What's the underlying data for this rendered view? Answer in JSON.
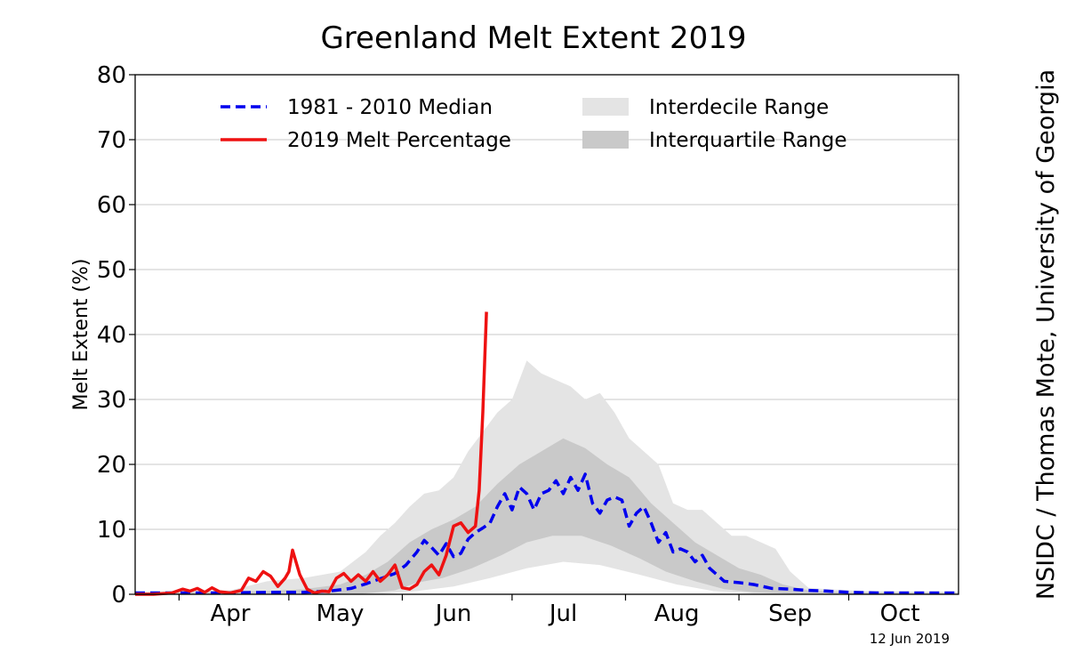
{
  "chart_data": {
    "type": "line",
    "title": "Greenland Melt Extent 2019",
    "ylabel": "Melt Extent (%)",
    "xlabel": "",
    "ylim": [
      0,
      80
    ],
    "y_ticks": [
      0,
      10,
      20,
      30,
      40,
      50,
      60,
      70,
      80
    ],
    "grid": "horizontal",
    "legend_position": "top",
    "x_range": [
      "2019-03-20",
      "2019-10-31"
    ],
    "month_ticks": [
      {
        "label": "Apr",
        "date": "2019-04-15"
      },
      {
        "label": "May",
        "date": "2019-05-15"
      },
      {
        "label": "Jun",
        "date": "2019-06-15"
      },
      {
        "label": "Jul",
        "date": "2019-07-15"
      },
      {
        "label": "Aug",
        "date": "2019-08-15"
      },
      {
        "label": "Sep",
        "date": "2019-09-15"
      },
      {
        "label": "Oct",
        "date": "2019-10-15"
      }
    ],
    "legend": [
      {
        "label": "1981 - 2010 Median",
        "key": "median",
        "style": "dashed",
        "color": "#0000ee"
      },
      {
        "label": "2019 Melt Percentage",
        "key": "melt2019",
        "style": "solid",
        "color": "#ee1111"
      },
      {
        "label": "Interdecile Range",
        "key": "interdecile",
        "style": "fill",
        "color": "#e4e4e4"
      },
      {
        "label": "Interquartile Range",
        "key": "interquartile",
        "style": "fill",
        "color": "#c9c9c9"
      }
    ],
    "series": [
      {
        "name": "1981 - 2010 Median",
        "key": "median",
        "points": [
          [
            "2019-03-20",
            0.2
          ],
          [
            "2019-04-10",
            0.2
          ],
          [
            "2019-04-25",
            0.3
          ],
          [
            "2019-05-05",
            0.3
          ],
          [
            "2019-05-12",
            0.5
          ],
          [
            "2019-05-18",
            0.9
          ],
          [
            "2019-05-22",
            1.6
          ],
          [
            "2019-05-26",
            2.4
          ],
          [
            "2019-05-30",
            3.2
          ],
          [
            "2019-06-02",
            4.5
          ],
          [
            "2019-06-05",
            6.5
          ],
          [
            "2019-06-07",
            8.3
          ],
          [
            "2019-06-09",
            7.2
          ],
          [
            "2019-06-11",
            6.0
          ],
          [
            "2019-06-13",
            7.8
          ],
          [
            "2019-06-15",
            5.8
          ],
          [
            "2019-06-17",
            6.3
          ],
          [
            "2019-06-19",
            8.5
          ],
          [
            "2019-06-21",
            9.5
          ],
          [
            "2019-06-23",
            10.2
          ],
          [
            "2019-06-25",
            11.0
          ],
          [
            "2019-06-27",
            13.5
          ],
          [
            "2019-06-29",
            15.5
          ],
          [
            "2019-07-01",
            13.0
          ],
          [
            "2019-07-03",
            16.5
          ],
          [
            "2019-07-05",
            15.5
          ],
          [
            "2019-07-07",
            13.0
          ],
          [
            "2019-07-09",
            15.5
          ],
          [
            "2019-07-11",
            16.0
          ],
          [
            "2019-07-13",
            17.5
          ],
          [
            "2019-07-15",
            15.5
          ],
          [
            "2019-07-17",
            18.0
          ],
          [
            "2019-07-19",
            16.0
          ],
          [
            "2019-07-21",
            18.5
          ],
          [
            "2019-07-23",
            14.0
          ],
          [
            "2019-07-25",
            12.5
          ],
          [
            "2019-07-27",
            14.5
          ],
          [
            "2019-07-29",
            15.0
          ],
          [
            "2019-07-31",
            14.5
          ],
          [
            "2019-08-02",
            10.5
          ],
          [
            "2019-08-04",
            12.5
          ],
          [
            "2019-08-06",
            13.5
          ],
          [
            "2019-08-08",
            11.0
          ],
          [
            "2019-08-10",
            8.0
          ],
          [
            "2019-08-12",
            9.5
          ],
          [
            "2019-08-14",
            6.5
          ],
          [
            "2019-08-16",
            7.0
          ],
          [
            "2019-08-18",
            6.5
          ],
          [
            "2019-08-20",
            5.0
          ],
          [
            "2019-08-22",
            6.0
          ],
          [
            "2019-08-24",
            4.0
          ],
          [
            "2019-08-26",
            3.0
          ],
          [
            "2019-08-28",
            2.0
          ],
          [
            "2019-09-01",
            1.8
          ],
          [
            "2019-09-05",
            1.5
          ],
          [
            "2019-09-10",
            0.9
          ],
          [
            "2019-09-15",
            0.8
          ],
          [
            "2019-09-20",
            0.6
          ],
          [
            "2019-09-25",
            0.5
          ],
          [
            "2019-10-01",
            0.3
          ],
          [
            "2019-10-10",
            0.2
          ],
          [
            "2019-10-31",
            0.2
          ]
        ]
      },
      {
        "name": "2019 Melt Percentage",
        "key": "melt2019",
        "points": [
          [
            "2019-03-20",
            0.0
          ],
          [
            "2019-03-25",
            0.0
          ],
          [
            "2019-03-30",
            0.2
          ],
          [
            "2019-04-02",
            0.8
          ],
          [
            "2019-04-04",
            0.5
          ],
          [
            "2019-04-06",
            0.9
          ],
          [
            "2019-04-08",
            0.3
          ],
          [
            "2019-04-10",
            1.0
          ],
          [
            "2019-04-12",
            0.4
          ],
          [
            "2019-04-15",
            0.2
          ],
          [
            "2019-04-18",
            0.6
          ],
          [
            "2019-04-20",
            2.5
          ],
          [
            "2019-04-22",
            2.0
          ],
          [
            "2019-04-24",
            3.5
          ],
          [
            "2019-04-26",
            2.8
          ],
          [
            "2019-04-28",
            1.2
          ],
          [
            "2019-04-30",
            2.5
          ],
          [
            "2019-05-01",
            3.5
          ],
          [
            "2019-05-02",
            6.8
          ],
          [
            "2019-05-04",
            3.0
          ],
          [
            "2019-05-06",
            0.8
          ],
          [
            "2019-05-08",
            0.2
          ],
          [
            "2019-05-10",
            0.5
          ],
          [
            "2019-05-12",
            0.4
          ],
          [
            "2019-05-14",
            2.5
          ],
          [
            "2019-05-16",
            3.2
          ],
          [
            "2019-05-18",
            2.0
          ],
          [
            "2019-05-20",
            3.0
          ],
          [
            "2019-05-22",
            2.0
          ],
          [
            "2019-05-24",
            3.5
          ],
          [
            "2019-05-26",
            2.0
          ],
          [
            "2019-05-28",
            3.0
          ],
          [
            "2019-05-30",
            4.5
          ],
          [
            "2019-06-01",
            1.0
          ],
          [
            "2019-06-03",
            0.8
          ],
          [
            "2019-06-05",
            1.5
          ],
          [
            "2019-06-07",
            3.5
          ],
          [
            "2019-06-09",
            4.5
          ],
          [
            "2019-06-11",
            3.0
          ],
          [
            "2019-06-13",
            6.0
          ],
          [
            "2019-06-15",
            10.5
          ],
          [
            "2019-06-17",
            11.0
          ],
          [
            "2019-06-19",
            9.5
          ],
          [
            "2019-06-21",
            10.5
          ],
          [
            "2019-06-22",
            16.0
          ],
          [
            "2019-06-23",
            28.0
          ],
          [
            "2019-06-24",
            43.5
          ]
        ]
      }
    ],
    "bands": [
      {
        "name": "Interdecile Range",
        "key": "interdecile",
        "upper": [
          [
            "2019-03-20",
            0.4
          ],
          [
            "2019-04-15",
            0.6
          ],
          [
            "2019-04-25",
            2.0
          ],
          [
            "2019-05-05",
            2.5
          ],
          [
            "2019-05-15",
            3.5
          ],
          [
            "2019-05-22",
            6.5
          ],
          [
            "2019-05-26",
            9.0
          ],
          [
            "2019-05-30",
            11.0
          ],
          [
            "2019-06-03",
            13.5
          ],
          [
            "2019-06-07",
            15.5
          ],
          [
            "2019-06-11",
            16.0
          ],
          [
            "2019-06-15",
            18.0
          ],
          [
            "2019-06-19",
            22.0
          ],
          [
            "2019-06-23",
            25.0
          ],
          [
            "2019-06-27",
            28.0
          ],
          [
            "2019-07-01",
            30.0
          ],
          [
            "2019-07-05",
            36.0
          ],
          [
            "2019-07-09",
            34.0
          ],
          [
            "2019-07-13",
            33.0
          ],
          [
            "2019-07-17",
            32.0
          ],
          [
            "2019-07-21",
            30.0
          ],
          [
            "2019-07-25",
            31.0
          ],
          [
            "2019-07-29",
            28.0
          ],
          [
            "2019-08-02",
            24.0
          ],
          [
            "2019-08-06",
            22.0
          ],
          [
            "2019-08-10",
            20.0
          ],
          [
            "2019-08-14",
            14.0
          ],
          [
            "2019-08-18",
            13.0
          ],
          [
            "2019-08-22",
            13.0
          ],
          [
            "2019-08-26",
            11.0
          ],
          [
            "2019-08-30",
            9.0
          ],
          [
            "2019-09-03",
            9.0
          ],
          [
            "2019-09-07",
            8.0
          ],
          [
            "2019-09-11",
            7.0
          ],
          [
            "2019-09-15",
            3.5
          ],
          [
            "2019-09-20",
            1.0
          ],
          [
            "2019-09-25",
            0.8
          ],
          [
            "2019-10-05",
            0.5
          ],
          [
            "2019-10-31",
            0.4
          ]
        ],
        "lower": [
          [
            "2019-03-20",
            0.0
          ],
          [
            "2019-05-25",
            0.0
          ],
          [
            "2019-06-05",
            0.5
          ],
          [
            "2019-06-15",
            1.2
          ],
          [
            "2019-06-25",
            2.5
          ],
          [
            "2019-07-05",
            4.0
          ],
          [
            "2019-07-15",
            5.0
          ],
          [
            "2019-07-25",
            4.5
          ],
          [
            "2019-08-05",
            3.0
          ],
          [
            "2019-08-15",
            1.5
          ],
          [
            "2019-08-25",
            0.5
          ],
          [
            "2019-09-05",
            0.1
          ],
          [
            "2019-10-31",
            0.0
          ]
        ]
      },
      {
        "name": "Interquartile Range",
        "key": "interquartile",
        "upper": [
          [
            "2019-03-20",
            0.2
          ],
          [
            "2019-04-25",
            0.5
          ],
          [
            "2019-05-05",
            0.8
          ],
          [
            "2019-05-15",
            1.5
          ],
          [
            "2019-05-22",
            3.0
          ],
          [
            "2019-05-28",
            5.0
          ],
          [
            "2019-06-03",
            8.0
          ],
          [
            "2019-06-09",
            10.0
          ],
          [
            "2019-06-15",
            11.5
          ],
          [
            "2019-06-21",
            13.5
          ],
          [
            "2019-06-27",
            17.0
          ],
          [
            "2019-07-03",
            20.0
          ],
          [
            "2019-07-09",
            22.0
          ],
          [
            "2019-07-15",
            24.0
          ],
          [
            "2019-07-21",
            22.5
          ],
          [
            "2019-07-27",
            20.0
          ],
          [
            "2019-08-02",
            18.0
          ],
          [
            "2019-08-08",
            14.0
          ],
          [
            "2019-08-14",
            11.0
          ],
          [
            "2019-08-20",
            8.0
          ],
          [
            "2019-08-26",
            6.0
          ],
          [
            "2019-09-01",
            4.0
          ],
          [
            "2019-09-07",
            3.0
          ],
          [
            "2019-09-13",
            1.5
          ],
          [
            "2019-09-20",
            0.6
          ],
          [
            "2019-10-01",
            0.3
          ],
          [
            "2019-10-31",
            0.2
          ]
        ],
        "lower": [
          [
            "2019-03-20",
            0.0
          ],
          [
            "2019-05-20",
            0.0
          ],
          [
            "2019-05-30",
            0.6
          ],
          [
            "2019-06-05",
            1.8
          ],
          [
            "2019-06-12",
            2.5
          ],
          [
            "2019-06-20",
            4.0
          ],
          [
            "2019-06-28",
            6.0
          ],
          [
            "2019-07-05",
            8.0
          ],
          [
            "2019-07-12",
            9.0
          ],
          [
            "2019-07-20",
            9.0
          ],
          [
            "2019-07-28",
            7.5
          ],
          [
            "2019-08-05",
            5.5
          ],
          [
            "2019-08-12",
            3.5
          ],
          [
            "2019-08-20",
            2.0
          ],
          [
            "2019-08-28",
            0.8
          ],
          [
            "2019-09-05",
            0.3
          ],
          [
            "2019-09-15",
            0.1
          ],
          [
            "2019-10-31",
            0.0
          ]
        ]
      }
    ]
  },
  "credit": "NSIDC / Thomas Mote, University of Georgia",
  "date_stamp": "12 Jun 2019"
}
